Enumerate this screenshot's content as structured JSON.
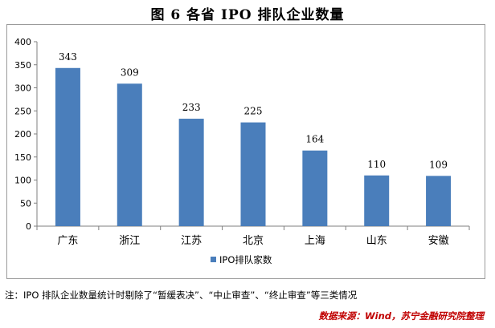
{
  "figure": {
    "title": "图 6 各省 IPO 排队企业数量",
    "note": "注：IPO 排队企业数量统计时剔除了“暂缓表决”、“中止审查”、“终止审查”等三类情况",
    "source": "数据来源：Wind，苏宁金融研究院整理"
  },
  "chart_data": {
    "type": "bar",
    "categories": [
      "广东",
      "浙江",
      "江苏",
      "北京",
      "上海",
      "山东",
      "安徽"
    ],
    "series": [
      {
        "name": "IPO排队家数",
        "values": [
          343,
          309,
          233,
          225,
          164,
          110,
          109
        ],
        "color": "#4a7ebb"
      }
    ],
    "data_labels": [
      "343",
      "309",
      "233",
      "225",
      "164",
      "110",
      "109"
    ],
    "y_ticks": [
      "0",
      "50",
      "100",
      "150",
      "200",
      "250",
      "300",
      "350",
      "400"
    ],
    "ylim": [
      0,
      400
    ],
    "grid": false,
    "legend_position": "bottom",
    "xlabel": "",
    "ylabel": ""
  }
}
